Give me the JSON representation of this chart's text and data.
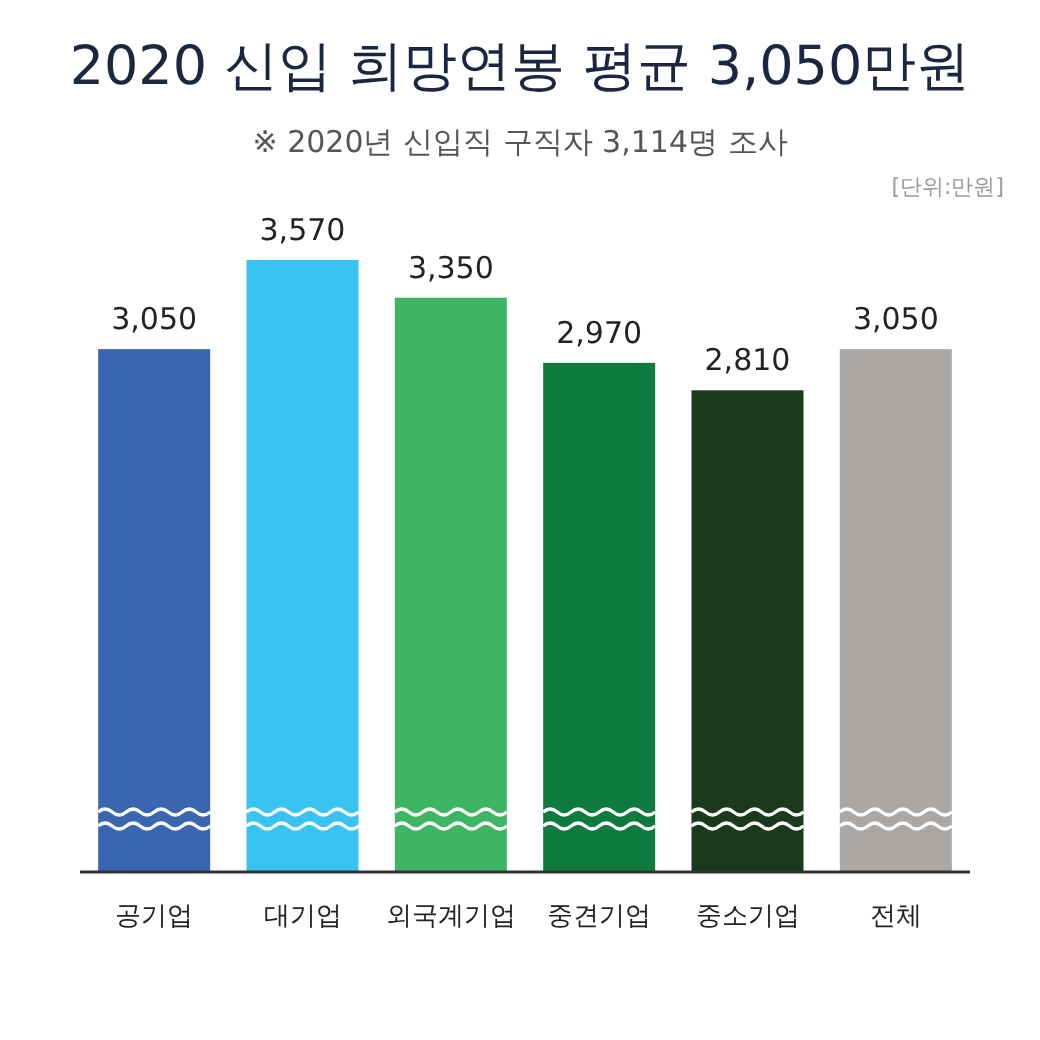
{
  "chart_data": {
    "type": "bar",
    "title": "2020 신입 희망연봉 평균 3,050만원",
    "subtitle": "※ 2020년 신입직 구직자 3,114명 조사",
    "annotations": [
      "[단위:만원]"
    ],
    "categories": [
      "공기업",
      "대기업",
      "외국계기업",
      "중견기업",
      "중소기업",
      "전체"
    ],
    "values": [
      3050,
      3570,
      3350,
      2970,
      2810,
      3050
    ],
    "colors": [
      "#3a66b0",
      "#38c3f0",
      "#3db562",
      "#0f7a3e",
      "#1b3a1c",
      "#aba7a5"
    ],
    "value_labels": [
      "3,050",
      "3,570",
      "3,350",
      "2,970",
      "2,810",
      "3,050"
    ],
    "tick_labels": "x"
  }
}
